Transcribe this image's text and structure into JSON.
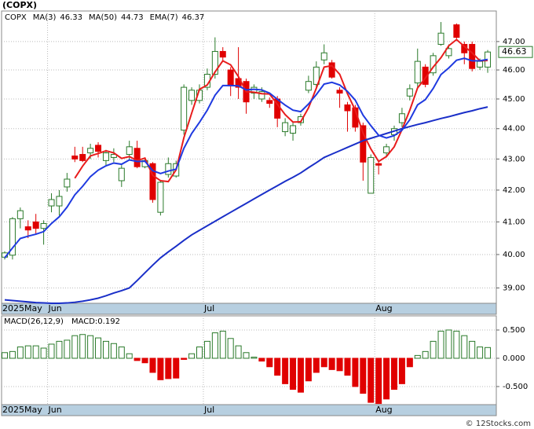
{
  "chart_data": [
    {
      "type": "candlestick",
      "title": "(COPX)",
      "legend_label": "COPX",
      "categories": [
        "2025May",
        null,
        null,
        null,
        null,
        null,
        "Jun",
        null,
        null,
        null,
        null,
        null,
        null,
        null,
        null,
        null,
        null,
        null,
        null,
        null,
        null,
        null,
        null,
        null,
        null,
        null,
        "Jul",
        null,
        null,
        null,
        null,
        null,
        null,
        null,
        null,
        null,
        null,
        null,
        null,
        null,
        null,
        null,
        null,
        null,
        null,
        null,
        null,
        null,
        "Aug",
        null,
        null,
        null,
        null,
        null,
        null,
        null,
        null,
        null,
        null,
        null,
        null,
        null,
        null
      ],
      "open": [
        39.92,
        39.98,
        41.1,
        40.85,
        41.0,
        40.8,
        41.5,
        41.5,
        42.1,
        43.1,
        43.15,
        43.2,
        43.45,
        42.95,
        43.05,
        42.3,
        43.15,
        43.35,
        42.75,
        42.85,
        41.3,
        42.5,
        42.45,
        43.95,
        44.95,
        44.95,
        45.4,
        45.85,
        46.65,
        46.0,
        45.7,
        45.6,
        45.2,
        45.0,
        44.95,
        45.0,
        43.9,
        43.85,
        44.2,
        45.3,
        45.5,
        46.35,
        46.25,
        45.3,
        44.8,
        44.7,
        44.1,
        41.9,
        42.85,
        43.2,
        43.8,
        44.2,
        45.1,
        45.55,
        46.1,
        45.9,
        46.9,
        46.5,
        47.6,
        46.9,
        46.9,
        46.1,
        46.1
      ],
      "high": [
        40.1,
        41.15,
        41.45,
        41.05,
        41.25,
        41.05,
        41.9,
        42.0,
        42.55,
        43.4,
        43.4,
        43.5,
        43.55,
        43.3,
        43.35,
        42.8,
        43.6,
        43.6,
        43.05,
        42.9,
        42.3,
        43.05,
        42.95,
        45.5,
        45.4,
        45.5,
        46.05,
        47.15,
        46.8,
        46.1,
        46.8,
        45.7,
        45.5,
        45.4,
        45.05,
        45.1,
        44.35,
        44.2,
        44.5,
        45.8,
        46.3,
        46.9,
        46.35,
        45.4,
        44.9,
        44.8,
        44.2,
        43.15,
        42.9,
        43.5,
        44.1,
        44.7,
        45.5,
        46.75,
        46.2,
        46.6,
        47.7,
        46.9,
        47.65,
        47.0,
        47.0,
        46.4,
        46.7
      ],
      "low": [
        39.85,
        39.85,
        40.8,
        40.5,
        40.6,
        40.3,
        41.3,
        41.2,
        41.95,
        42.9,
        42.9,
        43.0,
        43.05,
        42.8,
        42.9,
        42.1,
        42.95,
        42.7,
        42.7,
        41.6,
        41.2,
        42.4,
        42.4,
        43.8,
        44.8,
        44.85,
        45.3,
        45.7,
        46.3,
        45.1,
        45.0,
        44.5,
        45.0,
        44.9,
        44.7,
        44.05,
        43.75,
        43.6,
        44.1,
        45.2,
        45.35,
        46.2,
        45.7,
        44.7,
        43.9,
        43.9,
        42.3,
        41.9,
        42.5,
        43.05,
        43.6,
        44.05,
        44.95,
        45.4,
        45.4,
        45.8,
        46.85,
        46.4,
        47.1,
        46.2,
        45.95,
        46.0,
        45.9
      ],
      "close": [
        40.05,
        41.1,
        41.35,
        40.75,
        40.8,
        40.95,
        41.7,
        41.8,
        42.35,
        43.0,
        42.95,
        43.35,
        43.25,
        43.2,
        43.15,
        42.7,
        43.4,
        42.75,
        42.95,
        41.7,
        42.25,
        42.85,
        42.85,
        45.4,
        45.3,
        45.3,
        45.85,
        46.65,
        46.45,
        45.45,
        45.4,
        44.9,
        45.4,
        45.25,
        44.85,
        44.35,
        44.2,
        44.1,
        44.4,
        45.6,
        46.1,
        46.6,
        45.75,
        45.2,
        44.6,
        44.05,
        42.9,
        43.05,
        42.8,
        43.4,
        44.0,
        44.5,
        45.35,
        46.3,
        45.5,
        46.5,
        47.3,
        46.75,
        47.15,
        46.6,
        46.05,
        46.3,
        46.63
      ],
      "up_color": "#2a7a2a",
      "down_color": "#e00000",
      "series": [
        {
          "name": "MA(3)",
          "last_value": 46.33,
          "color": "#e81c1c",
          "values": [
            null,
            null,
            null,
            null,
            null,
            null,
            null,
            null,
            null,
            42.38,
            42.77,
            43.1,
            43.18,
            43.27,
            43.2,
            43.02,
            43.08,
            42.95,
            43.03,
            42.47,
            42.3,
            42.27,
            42.65,
            43.7,
            44.52,
            45.33,
            45.48,
            45.93,
            46.32,
            46.18,
            45.77,
            45.25,
            45.23,
            45.18,
            45.17,
            44.82,
            44.47,
            44.22,
            44.23,
            44.7,
            45.37,
            46.1,
            46.15,
            45.85,
            45.18,
            44.62,
            43.85,
            43.33,
            42.92,
            43.08,
            43.4,
            43.97,
            44.62,
            45.38,
            45.72,
            46.1,
            46.43,
            46.85,
            47.07,
            46.83,
            46.6,
            46.32,
            46.33
          ]
        },
        {
          "name": "MA(50)",
          "last_value": 44.73,
          "color": "#1a2fc8",
          "values": [
            38.65,
            38.63,
            38.61,
            38.59,
            38.57,
            38.56,
            38.55,
            38.55,
            38.56,
            38.58,
            38.61,
            38.65,
            38.7,
            38.77,
            38.85,
            38.92,
            39.0,
            39.22,
            39.45,
            39.68,
            39.9,
            40.08,
            40.25,
            40.43,
            40.6,
            40.74,
            40.88,
            41.02,
            41.16,
            41.3,
            41.44,
            41.58,
            41.72,
            41.86,
            42.0,
            42.14,
            42.28,
            42.41,
            42.55,
            42.72,
            42.88,
            43.05,
            43.16,
            43.27,
            43.38,
            43.49,
            43.6,
            43.68,
            43.76,
            43.84,
            43.92,
            44.0,
            44.07,
            44.14,
            44.2,
            44.27,
            44.34,
            44.4,
            44.47,
            44.54,
            44.6,
            44.67,
            44.73
          ]
        },
        {
          "name": "EMA(7)",
          "last_value": 46.37,
          "color": "#1f3ae0",
          "values": [
            39.9,
            40.2,
            40.49,
            40.56,
            40.62,
            40.7,
            40.95,
            41.16,
            41.46,
            41.85,
            42.12,
            42.43,
            42.64,
            42.78,
            42.87,
            42.83,
            42.97,
            42.92,
            42.93,
            42.62,
            42.53,
            42.61,
            42.67,
            43.35,
            43.84,
            44.21,
            44.62,
            45.13,
            45.46,
            45.46,
            45.45,
            45.31,
            45.33,
            45.31,
            45.2,
            44.99,
            44.79,
            44.62,
            44.57,
            44.83,
            45.15,
            45.51,
            45.57,
            45.48,
            45.26,
            44.96,
            44.45,
            44.1,
            43.78,
            43.69,
            43.77,
            43.95,
            44.3,
            44.8,
            44.98,
            45.36,
            45.84,
            46.07,
            46.34,
            46.41,
            46.32,
            46.32,
            46.37
          ]
        }
      ],
      "last_price": 46.63,
      "ylim": [
        38.55,
        48.1
      ],
      "log_scale": true,
      "grid": true,
      "yticks": [
        {
          "value": 39,
          "label": "39.00"
        },
        {
          "value": 40,
          "label": "40.00"
        },
        {
          "value": 41,
          "label": "41.00"
        },
        {
          "value": 42,
          "label": "42.00"
        },
        {
          "value": 43,
          "label": "43.00"
        },
        {
          "value": 44,
          "label": "44.00"
        },
        {
          "value": 45,
          "label": "45.00"
        },
        {
          "value": 46,
          "label": "46.00"
        },
        {
          "value": 47,
          "label": "47.00"
        }
      ]
    },
    {
      "type": "bar",
      "title": "MACD(26,12,9)",
      "legend_label": "MACD:0.192",
      "categories": [
        "2025May",
        null,
        null,
        null,
        null,
        null,
        "Jun",
        null,
        null,
        null,
        null,
        null,
        null,
        null,
        null,
        null,
        null,
        null,
        null,
        null,
        null,
        null,
        null,
        null,
        null,
        null,
        "Jul",
        null,
        null,
        null,
        null,
        null,
        null,
        null,
        null,
        null,
        null,
        null,
        null,
        null,
        null,
        null,
        null,
        null,
        null,
        null,
        null,
        null,
        "Aug",
        null,
        null,
        null,
        null,
        null,
        null,
        null,
        null,
        null,
        null,
        null,
        null,
        null,
        null
      ],
      "values": [
        0.1,
        0.12,
        0.2,
        0.22,
        0.22,
        0.18,
        0.25,
        0.3,
        0.32,
        0.4,
        0.42,
        0.4,
        0.36,
        0.3,
        0.26,
        0.2,
        0.08,
        -0.04,
        -0.08,
        -0.25,
        -0.38,
        -0.36,
        -0.35,
        -0.02,
        0.08,
        0.2,
        0.3,
        0.45,
        0.48,
        0.35,
        0.22,
        0.1,
        0.02,
        -0.05,
        -0.15,
        -0.3,
        -0.45,
        -0.55,
        -0.6,
        -0.4,
        -0.25,
        -0.15,
        -0.2,
        -0.22,
        -0.3,
        -0.5,
        -0.62,
        -0.78,
        -0.8,
        -0.72,
        -0.55,
        -0.45,
        -0.15,
        0.05,
        0.12,
        0.3,
        0.48,
        0.5,
        0.48,
        0.4,
        0.3,
        0.2,
        0.19
      ],
      "positive_color": "#2a7a2a",
      "negative_color": "#e00000",
      "legend_color": "#1f3ae0",
      "ylim": [
        -0.82,
        0.75
      ],
      "grid": true,
      "yticks": [
        {
          "value": -0.5,
          "label": "-0.500"
        },
        {
          "value": 0,
          "label": "0.000"
        },
        {
          "value": 0.5,
          "label": "0.500"
        }
      ]
    }
  ],
  "footer": "© 12Stocks.com"
}
